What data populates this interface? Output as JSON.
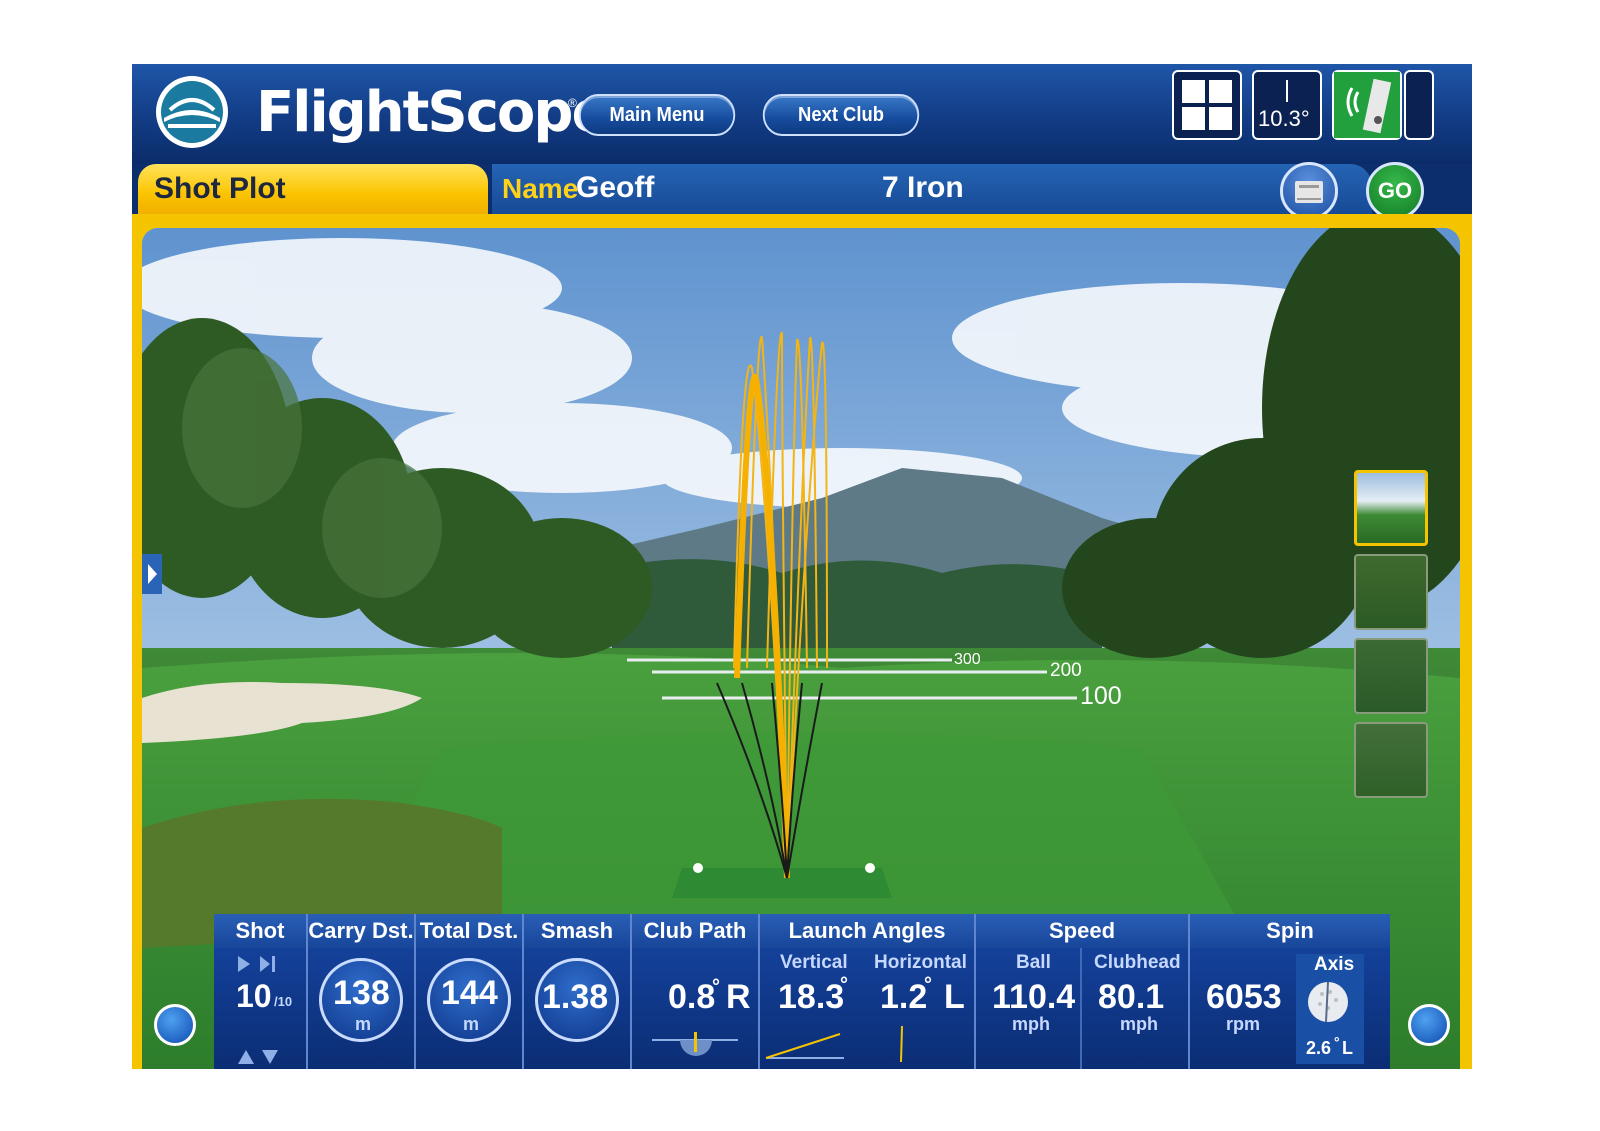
{
  "header": {
    "brand": "FlightScope",
    "reg_mark": "®",
    "main_menu_label": "Main Menu",
    "next_club_label": "Next Club",
    "angle_readout": "10.3°"
  },
  "tabs": {
    "shot_plot_label": "Shot Plot",
    "name_label": "Name",
    "name_value": "Geoff",
    "club_value": "7 Iron",
    "go_label": "GO"
  },
  "scene": {
    "distance_markers": [
      "300",
      "200",
      "100"
    ]
  },
  "stats": {
    "shot": {
      "header": "Shot",
      "value": "10",
      "total": "/10"
    },
    "carry": {
      "header": "Carry Dst.",
      "value": "138",
      "unit": "m"
    },
    "total": {
      "header": "Total Dst.",
      "value": "144",
      "unit": "m"
    },
    "smash": {
      "header": "Smash",
      "value": "1.38"
    },
    "club_path": {
      "header": "Club Path",
      "value": "0.8",
      "deg": "°",
      "dir": "R"
    },
    "launch": {
      "header": "Launch Angles",
      "vertical_label": "Vertical",
      "vertical_value": "18.3",
      "vertical_deg": "°",
      "horizontal_label": "Horizontal",
      "horizontal_value": "1.2",
      "horizontal_deg": "°",
      "horizontal_dir": "L"
    },
    "speed": {
      "header": "Speed",
      "ball_label": "Ball",
      "ball_value": "110.4",
      "ball_unit": "mph",
      "clubhead_label": "Clubhead",
      "clubhead_value": "80.1",
      "clubhead_unit": "mph"
    },
    "spin": {
      "header": "Spin",
      "value": "6053",
      "unit": "rpm",
      "axis_label": "Axis",
      "axis_value": "2.6",
      "axis_deg": "°",
      "axis_dir": "L"
    }
  },
  "colors": {
    "accent_yellow": "#f5c400",
    "panel_blue": "#0c2a74",
    "trajectory": "#f2b416"
  }
}
